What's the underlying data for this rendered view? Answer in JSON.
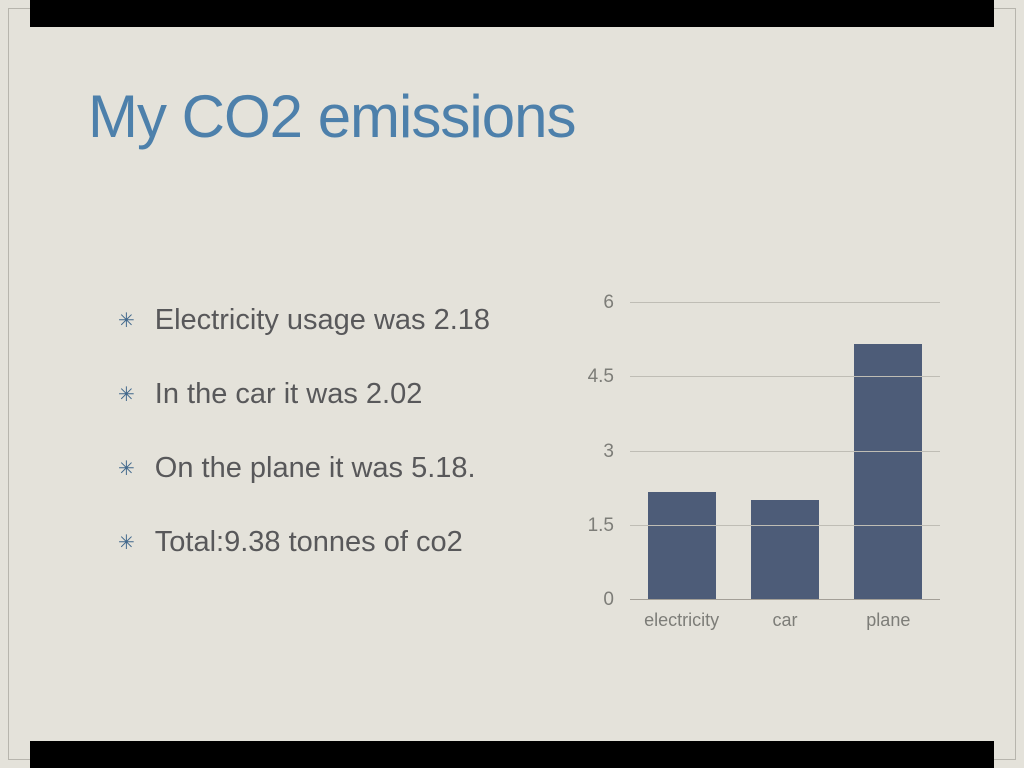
{
  "slide": {
    "title": "My CO2 emissions",
    "bullet_glyph": "✳",
    "bullets": [
      "Electricity usage was 2.18",
      "In the car it was 2.02",
      "On the plane it was 5.18.",
      "Total:9.38 tonnes of co2"
    ]
  },
  "colors": {
    "background": "#e4e2da",
    "title": "#4d80ab",
    "bullet_text": "#58585a",
    "bullet_star": "#41688c",
    "bar": "#4d5c78",
    "axis_text": "#7d7d78"
  },
  "chart_data": {
    "type": "bar",
    "categories": [
      "electricity",
      "car",
      "plane"
    ],
    "values": [
      2.18,
      2.02,
      5.18
    ],
    "title": "",
    "xlabel": "",
    "ylabel": "",
    "ylim": [
      0,
      6
    ],
    "yticks": [
      0,
      1.5,
      3,
      4.5,
      6
    ],
    "grid": true,
    "legend": false
  }
}
